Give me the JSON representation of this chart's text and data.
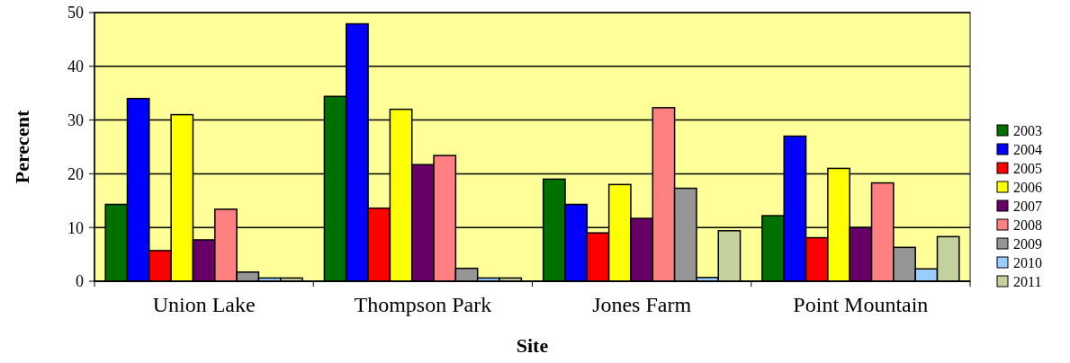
{
  "chart_data": {
    "type": "bar",
    "xlabel": "Site",
    "ylabel": "Perecent",
    "categories": [
      "Union Lake",
      "Thompson Park",
      "Jones Farm",
      "Point Mountain"
    ],
    "ylim": [
      0,
      50
    ],
    "yticks": [
      0,
      10,
      20,
      30,
      40,
      50
    ],
    "grid": "y",
    "legend": "right",
    "series": [
      {
        "name": "2003",
        "color": "#007000",
        "values": [
          14.3,
          34.4,
          19,
          12.2
        ]
      },
      {
        "name": "2004",
        "color": "#0000ff",
        "values": [
          34,
          47.9,
          14.3,
          27
        ]
      },
      {
        "name": "2005",
        "color": "#ff0000",
        "values": [
          5.7,
          13.6,
          9,
          8.1
        ]
      },
      {
        "name": "2006",
        "color": "#ffff00",
        "values": [
          31,
          32,
          18,
          21
        ]
      },
      {
        "name": "2007",
        "color": "#660066",
        "values": [
          7.7,
          21.7,
          11.7,
          10
        ]
      },
      {
        "name": "2008",
        "color": "#ff8080",
        "values": [
          13.4,
          23.4,
          32.3,
          18.3
        ]
      },
      {
        "name": "2009",
        "color": "#969696",
        "values": [
          1.7,
          2.4,
          17.3,
          6.3
        ]
      },
      {
        "name": "2010",
        "color": "#99ccff",
        "values": [
          0.6,
          0.6,
          0.7,
          2.3
        ]
      },
      {
        "name": "2011",
        "color": "#c4d19c",
        "values": [
          0.6,
          0.6,
          9.4,
          8.3
        ]
      }
    ]
  }
}
